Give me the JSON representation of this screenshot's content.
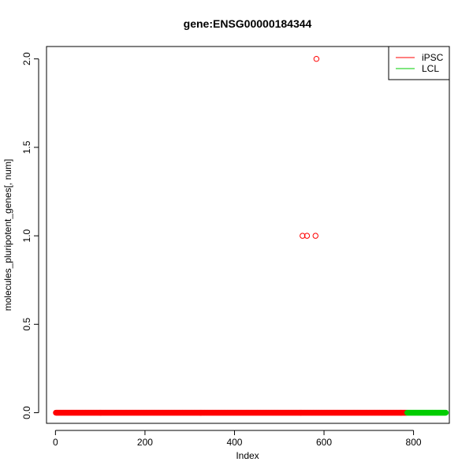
{
  "chart_data": {
    "type": "scatter",
    "title": "gene:ENSG00000184344",
    "xlabel": "Index",
    "ylabel": "molecules_pluripotent_genes[, num]",
    "xlim": [
      -20,
      880
    ],
    "ylim": [
      -0.06,
      2.07
    ],
    "x_ticks": [
      0,
      200,
      400,
      600,
      800
    ],
    "y_ticks": [
      0.0,
      0.5,
      1.0,
      1.5,
      2.0
    ],
    "x_tick_labels": [
      "0",
      "200",
      "400",
      "600",
      "800"
    ],
    "y_tick_labels": [
      "0.0",
      "0.5",
      "1.0",
      "1.5",
      "2.0"
    ],
    "grid": false,
    "legend_position": "top-right",
    "series": [
      {
        "name": "iPSC",
        "color": "#ff0000",
        "index_range": [
          1,
          785
        ],
        "baseline_value": 0,
        "points": [
          {
            "x": 552,
            "y": 1
          },
          {
            "x": 562,
            "y": 1
          },
          {
            "x": 581,
            "y": 1
          },
          {
            "x": 583,
            "y": 2
          }
        ]
      },
      {
        "name": "LCL",
        "color": "#00cd00",
        "index_range": [
          786,
          872
        ],
        "baseline_value": 0,
        "points": []
      }
    ]
  }
}
